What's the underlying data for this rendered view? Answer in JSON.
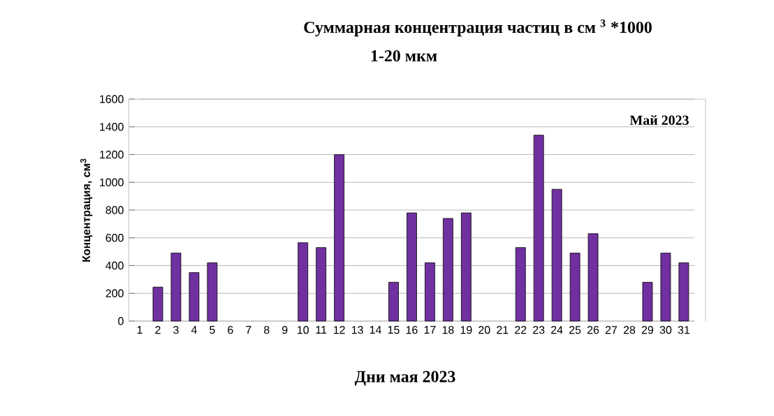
{
  "chart_data": {
    "type": "bar",
    "title": "Суммарная концентрация частиц  в см $^{3}$ *1000",
    "subtitle": "1-20 мкм",
    "xlabel": "Дни мая 2023",
    "ylabel": "Концентрация, см$^{3}$",
    "annotations": [
      "Май 2023"
    ],
    "categories": [
      "1",
      "2",
      "3",
      "4",
      "5",
      "6",
      "7",
      "8",
      "9",
      "10",
      "11",
      "12",
      "13",
      "14",
      "15",
      "16",
      "17",
      "18",
      "19",
      "20",
      "21",
      "22",
      "23",
      "24",
      "25",
      "26",
      "27",
      "28",
      "29",
      "30",
      "31"
    ],
    "values": [
      null,
      245,
      490,
      350,
      420,
      null,
      null,
      null,
      null,
      565,
      530,
      1200,
      null,
      null,
      280,
      780,
      420,
      740,
      780,
      null,
      null,
      530,
      1340,
      950,
      490,
      630,
      null,
      null,
      280,
      490,
      420
    ],
    "color": "#7030a0",
    "ylim": [
      0,
      1600
    ],
    "yticks": [
      0,
      200,
      400,
      600,
      800,
      1000,
      1200,
      1400,
      1600
    ],
    "grid": "y"
  }
}
